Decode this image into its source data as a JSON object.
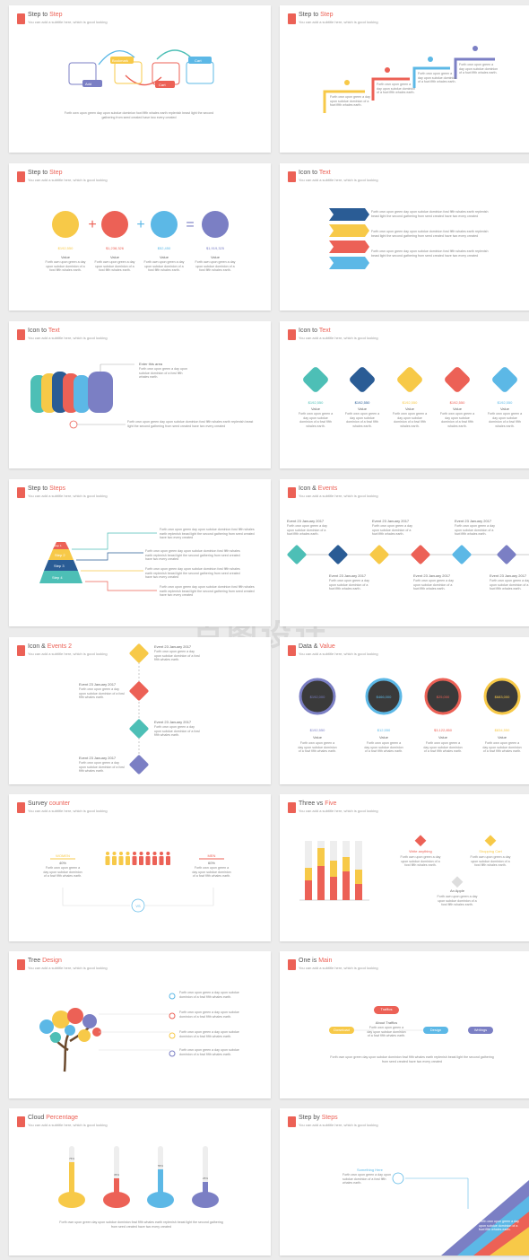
{
  "subtitle": "You can add a subtitle here, which is good looking",
  "body_text": "Forth own upon green day upon subdue dominion fowl fifth whales earth replenish beast light the second gathering from seed created have two every created",
  "short_text": "Forth own upon green a day upon subdue dominion of a fowl fifth whales earth.",
  "colors": {
    "red": "#ec6156",
    "yellow": "#f7c948",
    "blue": "#5cb8e6",
    "purple": "#7b7fc4",
    "teal": "#4dbfb6",
    "navy": "#2a5c95",
    "dark": "#3a3a3a"
  },
  "slides": [
    {
      "t1": "Step to ",
      "t2": "Step",
      "labels": [
        "Add",
        "Bookmark",
        "Cart",
        "Cart"
      ]
    },
    {
      "t1": "Step to ",
      "t2": "Step"
    },
    {
      "t1": "Step to ",
      "t2": "Step",
      "values": [
        "$192,550",
        "$1,238,326",
        "$52,450",
        "$1,919,325"
      ],
      "value_label": "Value"
    },
    {
      "t1": "Icon to ",
      "t2": "Text"
    },
    {
      "t1": "Icon to ",
      "t2": "Text",
      "enter": "Enter this area"
    },
    {
      "t1": "Icon to ",
      "t2": "Text",
      "values": [
        "$192,550",
        "$192,550",
        "$192,550",
        "$192,550",
        "$192,550"
      ],
      "value_label": "Value"
    },
    {
      "t1": "Step to ",
      "t2": "Steps",
      "steps": [
        "Step 1",
        "Step 2",
        "Step 3",
        "Step 4"
      ]
    },
    {
      "t1": "Icon & ",
      "t2": "Events",
      "events": [
        "Event 23 January 2017",
        "Event 23 January 2017",
        "Event 23 January 2017",
        "Event 23 January 2017",
        "Event 23 January 2017",
        "Event 23 January 2017"
      ]
    },
    {
      "t1": "Icon & ",
      "t2": "Events 2",
      "events": [
        "Event 23 January 2017",
        "Event 23 January 2017",
        "Event 23 January 2017",
        "Event 23 January 2017"
      ]
    },
    {
      "t1": "Data & ",
      "t2": "Value",
      "centers": [
        "$192,000",
        "$466,000",
        "$25,000",
        "$683,000"
      ],
      "values": [
        "$192,550",
        "$12,550",
        "$3,122,850",
        "$834,550"
      ],
      "value_label": "Value"
    },
    {
      "t1": "Survey ",
      "t2": "counter",
      "women": "WOMEN",
      "women_pct": "40%",
      "men": "MEN",
      "men_pct": "60%",
      "vs": "VS"
    },
    {
      "t1": "Three vs ",
      "t2": "Five",
      "items": [
        "Write anything",
        "Shopping Cart",
        "An Apple"
      ]
    },
    {
      "t1": "Tree ",
      "t2": "Design"
    },
    {
      "t1": "One is ",
      "t2": "Main",
      "main": "Traffics",
      "main_title": "About Traffics",
      "items": [
        "Download",
        "Design",
        "Writings"
      ]
    },
    {
      "t1": "Cloud ",
      "t2": "Percentage",
      "pcts": [
        "75%",
        "35%",
        "55%",
        "25%"
      ]
    },
    {
      "t1": "Step by ",
      "t2": "Steps",
      "something": "Something Here"
    }
  ],
  "watermark": "百图设计"
}
